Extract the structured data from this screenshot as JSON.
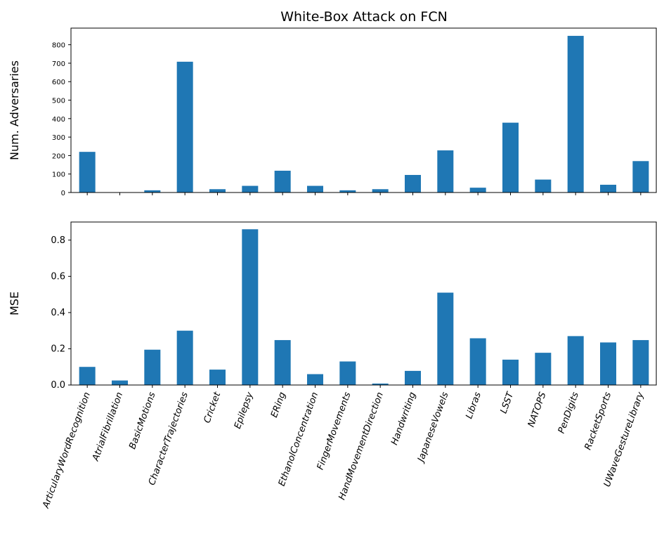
{
  "chart_data": {
    "title": "White-Box Attack on FCN",
    "type": "bar",
    "color": "#1f77b4",
    "categories": [
      "ArticularyWordRecognition",
      "AtrialFibrillation",
      "BasicMotions",
      "CharacterTrajectories",
      "Cricket",
      "Epilepsy",
      "ERing",
      "EthanolConcentration",
      "FingerMovements",
      "HandMovementDirection",
      "Handwriting",
      "JapaneseVowels",
      "Libras",
      "LSST",
      "NATOPS",
      "PenDigits",
      "RacketSports",
      "UWaveGestureLibrary"
    ],
    "panels": [
      {
        "ylabel": "Num. Adversaries",
        "ylim": [
          0,
          890
        ],
        "yticks": [
          0,
          100,
          200,
          300,
          400,
          500,
          600,
          700,
          800
        ],
        "values": [
          220,
          0,
          12,
          708,
          18,
          36,
          118,
          36,
          12,
          18,
          95,
          228,
          26,
          378,
          70,
          848,
          42,
          170
        ]
      },
      {
        "ylabel": "MSE",
        "ylim": [
          0,
          0.9
        ],
        "yticks": [
          "0.0",
          "0.2",
          "0.4",
          "0.6",
          "0.8"
        ],
        "values": [
          0.1,
          0.025,
          0.195,
          0.3,
          0.085,
          0.86,
          0.248,
          0.06,
          0.13,
          0.008,
          0.078,
          0.51,
          0.258,
          0.14,
          0.178,
          0.27,
          0.235,
          0.248
        ]
      }
    ]
  }
}
